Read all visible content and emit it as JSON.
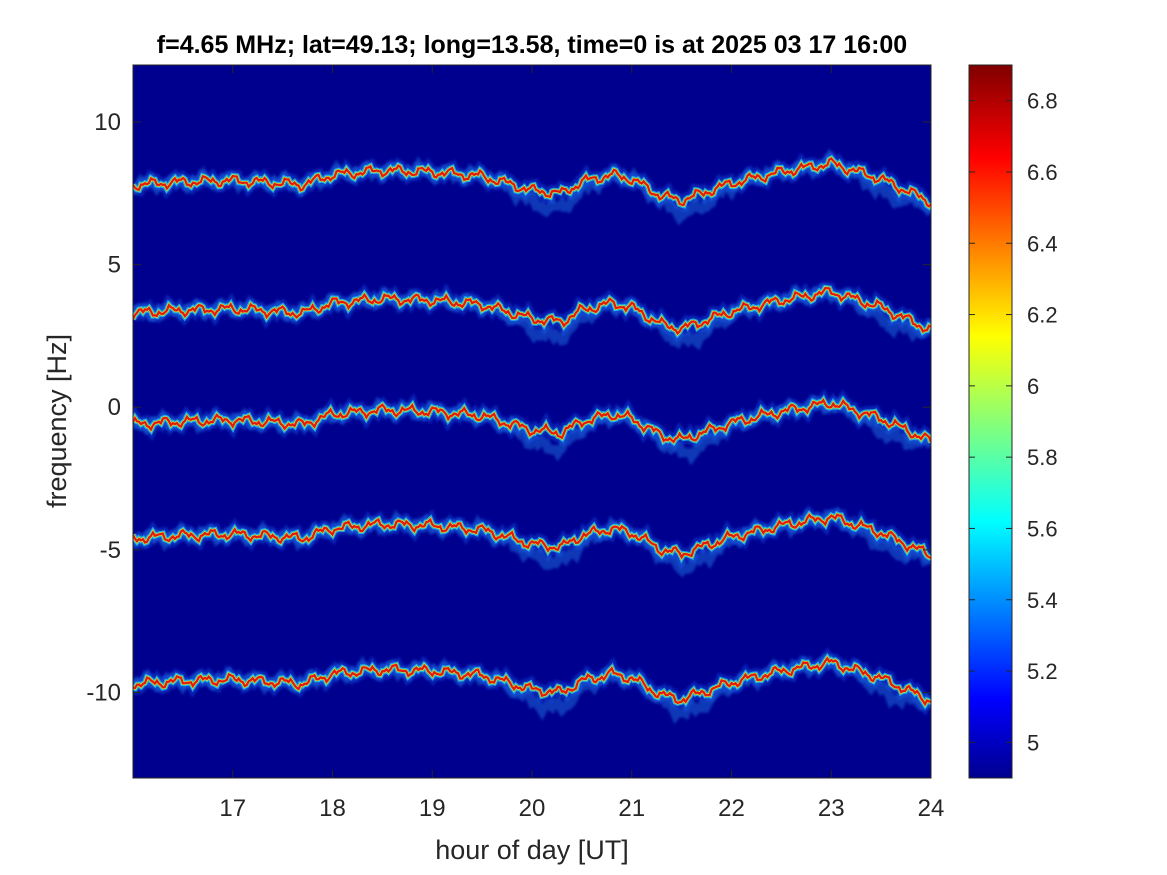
{
  "chart_data": {
    "type": "heatmap",
    "title": "f=4.65 MHz;  lat=49.13; long=13.58, time=0 is at 2025 03 17 16:00",
    "xlabel": "hour of day [UT]",
    "ylabel": "frequency [Hz]",
    "xlim": [
      16,
      24
    ],
    "ylim": [
      -13,
      12
    ],
    "xticks": [
      17,
      18,
      19,
      20,
      21,
      22,
      23,
      24
    ],
    "xtick_labels": [
      "17",
      "18",
      "19",
      "20",
      "21",
      "22",
      "23",
      "24"
    ],
    "yticks": [
      10,
      5,
      0,
      -5,
      -10
    ],
    "ytick_labels": [
      "10",
      "5",
      "0",
      "-5",
      "-10"
    ],
    "colorbar": {
      "colormap": "jet",
      "clim": [
        4.9,
        6.9
      ],
      "ticks": [
        6.8,
        6.6,
        6.4,
        6.2,
        6,
        5.8,
        5.6,
        5.4,
        5.2,
        5
      ],
      "tick_labels": [
        "6.8",
        "6.6",
        "6.4",
        "6.2",
        "6",
        "5.8",
        "5.6",
        "5.4",
        "5.2",
        "5"
      ]
    },
    "background_level": 4.9,
    "peak_level": 6.9,
    "trace_shape": {
      "x": [
        16,
        16.5,
        17,
        17.5,
        17.7,
        18,
        18.5,
        19,
        19.5,
        20,
        20.3,
        20.5,
        20.8,
        21,
        21.3,
        21.5,
        22,
        22.5,
        23,
        23.5,
        24
      ],
      "offset": [
        0,
        0.1,
        0.15,
        0.05,
        0,
        0.35,
        0.5,
        0.45,
        0.3,
        -0.2,
        -0.3,
        0.1,
        0.35,
        0.2,
        -0.4,
        -0.55,
        0.05,
        0.45,
        0.75,
        0.2,
        -0.6
      ]
    },
    "series": [
      {
        "name": "",
        "base_hz": 7.8
      },
      {
        "name": "",
        "base_hz": 3.3
      },
      {
        "name": "",
        "base_hz": -0.6
      },
      {
        "name": "",
        "base_hz": -4.6
      },
      {
        "name": "",
        "base_hz": -9.7
      }
    ]
  }
}
